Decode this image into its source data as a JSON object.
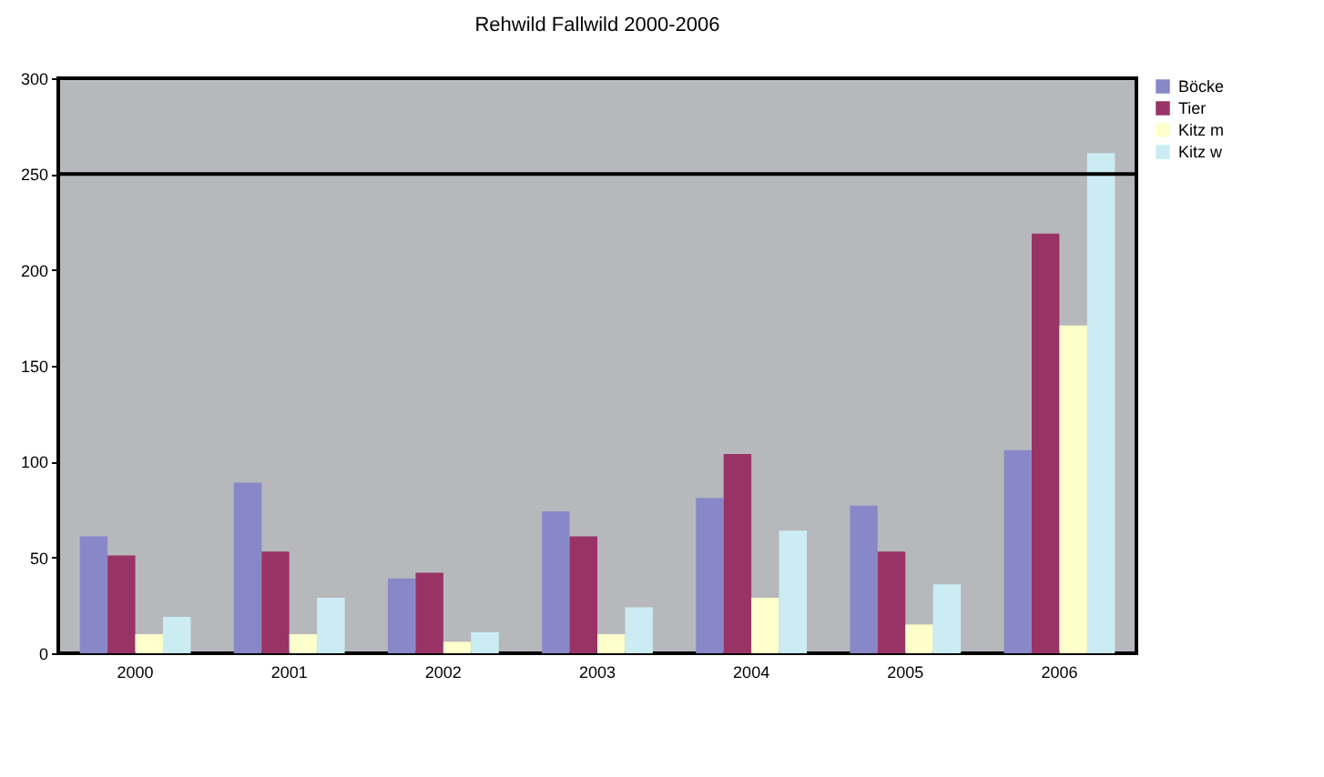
{
  "chart_data": {
    "type": "bar",
    "title": "Rehwild Fallwild 2000-2006",
    "categories": [
      "2000",
      "2001",
      "2002",
      "2003",
      "2004",
      "2005",
      "2006"
    ],
    "series": [
      {
        "name": "Böcke",
        "color": "#8888c8",
        "values": [
          61,
          89,
          39,
          74,
          81,
          77,
          106
        ]
      },
      {
        "name": "Tier",
        "color": "#993366",
        "values": [
          51,
          53,
          42,
          61,
          104,
          53,
          219
        ]
      },
      {
        "name": "Kitz m",
        "color": "#ffffcc",
        "values": [
          10,
          10,
          6,
          10,
          29,
          15,
          171
        ]
      },
      {
        "name": "Kitz w",
        "color": "#ccecf4",
        "values": [
          19,
          29,
          11,
          24,
          64,
          36,
          261
        ]
      }
    ],
    "ylim": [
      0,
      300
    ],
    "yticks": [
      0,
      50,
      100,
      150,
      200,
      250,
      300
    ],
    "grid": false,
    "legend": "right",
    "ref_lines": [
      {
        "axis": "y",
        "value": 250,
        "color": "#000000"
      }
    ]
  }
}
